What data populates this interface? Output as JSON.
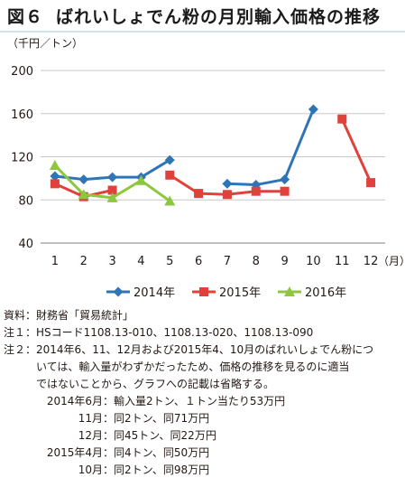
{
  "header": {
    "figure_label": "図６",
    "title": "ばれいしょでん粉の月別輸入価格の推移"
  },
  "chart_data": {
    "type": "line",
    "unit_label": "（千円／トン）",
    "x_unit_label": "（月）",
    "categories": [
      "1",
      "2",
      "3",
      "4",
      "5",
      "6",
      "7",
      "8",
      "9",
      "10",
      "11",
      "12"
    ],
    "ylim": [
      40,
      200
    ],
    "yticks": [
      40,
      80,
      120,
      160,
      200
    ],
    "grid": true,
    "legend_position": "bottom",
    "series": [
      {
        "name": "2014年",
        "color": "#2e75b6",
        "marker": "diamond",
        "values": [
          102,
          99,
          101,
          101,
          117,
          null,
          95,
          94,
          99,
          164,
          null,
          null
        ]
      },
      {
        "name": "2015年",
        "color": "#e0413b",
        "marker": "square",
        "values": [
          95,
          83,
          89,
          null,
          103,
          86,
          85,
          88,
          88,
          null,
          155,
          96
        ]
      },
      {
        "name": "2016年",
        "color": "#8dc63f",
        "marker": "triangle",
        "values": [
          112,
          85,
          82,
          98,
          79,
          null,
          null,
          null,
          null,
          null,
          null,
          null
        ]
      }
    ]
  },
  "notes": {
    "source_label": "資料：",
    "source_text": "財務省「貿易統計」",
    "note1_label": "注１：",
    "note1_text": "HSコード1108.13-010、1108.13-020、1108.13-090",
    "note2_label": "注２：",
    "note2_lines": [
      "2014年6、11、12月および2015年4、10月のばれいしょでん粉につ",
      "いては、輸入量がわずかだったため、価格の推移を見るのに適当",
      "ではないことから、グラフへの記載は省略する。"
    ],
    "details": [
      {
        "label": "2014年6月：",
        "text": "輸入量2トン、１トン当たり53万円"
      },
      {
        "label": "11月：",
        "text": "同2トン、同71万円"
      },
      {
        "label": "12月：",
        "text": "同45トン、同22万円"
      },
      {
        "label": "2015年4月：",
        "text": "同4トン、同50万円"
      },
      {
        "label": "10月：",
        "text": "同2トン、同98万円"
      }
    ]
  }
}
